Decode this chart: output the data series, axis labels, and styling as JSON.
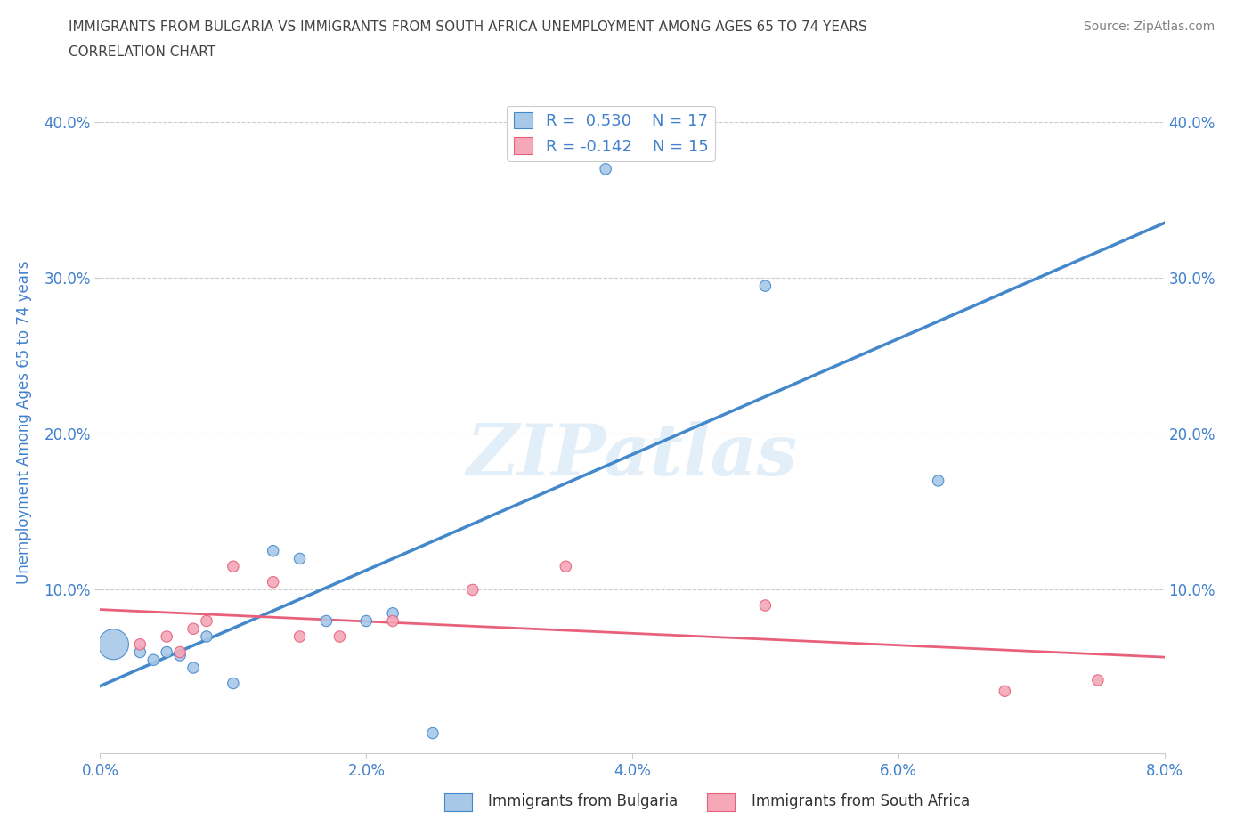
{
  "title_line1": "IMMIGRANTS FROM BULGARIA VS IMMIGRANTS FROM SOUTH AFRICA UNEMPLOYMENT AMONG AGES 65 TO 74 YEARS",
  "title_line2": "CORRELATION CHART",
  "source": "Source: ZipAtlas.com",
  "ylabel": "Unemployment Among Ages 65 to 74 years",
  "xlim": [
    0.0,
    0.08
  ],
  "ylim": [
    -0.005,
    0.42
  ],
  "x_ticks": [
    0.0,
    0.02,
    0.04,
    0.06,
    0.08
  ],
  "x_tick_labels": [
    "0.0%",
    "2.0%",
    "4.0%",
    "6.0%",
    "8.0%"
  ],
  "y_ticks": [
    0.1,
    0.2,
    0.3,
    0.4
  ],
  "y_tick_labels": [
    "10.0%",
    "20.0%",
    "30.0%",
    "40.0%"
  ],
  "legend1_label": "Immigrants from Bulgaria",
  "legend2_label": "Immigrants from South Africa",
  "R_bulgaria": 0.53,
  "N_bulgaria": 17,
  "R_south_africa": -0.142,
  "N_south_africa": 15,
  "color_bulgaria": "#a8c8e8",
  "color_south_africa": "#f4a8b8",
  "line_color_bulgaria": "#4488cc",
  "line_color_south_africa": "#e8607a",
  "watermark": "ZIPatlas",
  "bulgaria_x": [
    0.001,
    0.003,
    0.004,
    0.005,
    0.006,
    0.007,
    0.008,
    0.01,
    0.013,
    0.015,
    0.017,
    0.02,
    0.022,
    0.025,
    0.038,
    0.05,
    0.063
  ],
  "bulgaria_y": [
    0.065,
    0.06,
    0.055,
    0.06,
    0.058,
    0.05,
    0.07,
    0.04,
    0.125,
    0.12,
    0.08,
    0.08,
    0.085,
    0.008,
    0.37,
    0.295,
    0.17
  ],
  "bulgaria_sizes": [
    600,
    80,
    80,
    80,
    80,
    80,
    80,
    80,
    80,
    80,
    80,
    80,
    80,
    80,
    80,
    80,
    80
  ],
  "south_africa_x": [
    0.003,
    0.005,
    0.006,
    0.007,
    0.008,
    0.01,
    0.013,
    0.015,
    0.018,
    0.022,
    0.028,
    0.035,
    0.05,
    0.068,
    0.075
  ],
  "south_africa_y": [
    0.065,
    0.07,
    0.06,
    0.075,
    0.08,
    0.115,
    0.105,
    0.07,
    0.07,
    0.08,
    0.1,
    0.115,
    0.09,
    0.035,
    0.042
  ],
  "south_africa_sizes": [
    80,
    80,
    80,
    80,
    80,
    80,
    80,
    80,
    80,
    80,
    80,
    80,
    80,
    80,
    80
  ],
  "background_color": "#ffffff",
  "title_color": "#444444",
  "axis_color": "#4080cc"
}
